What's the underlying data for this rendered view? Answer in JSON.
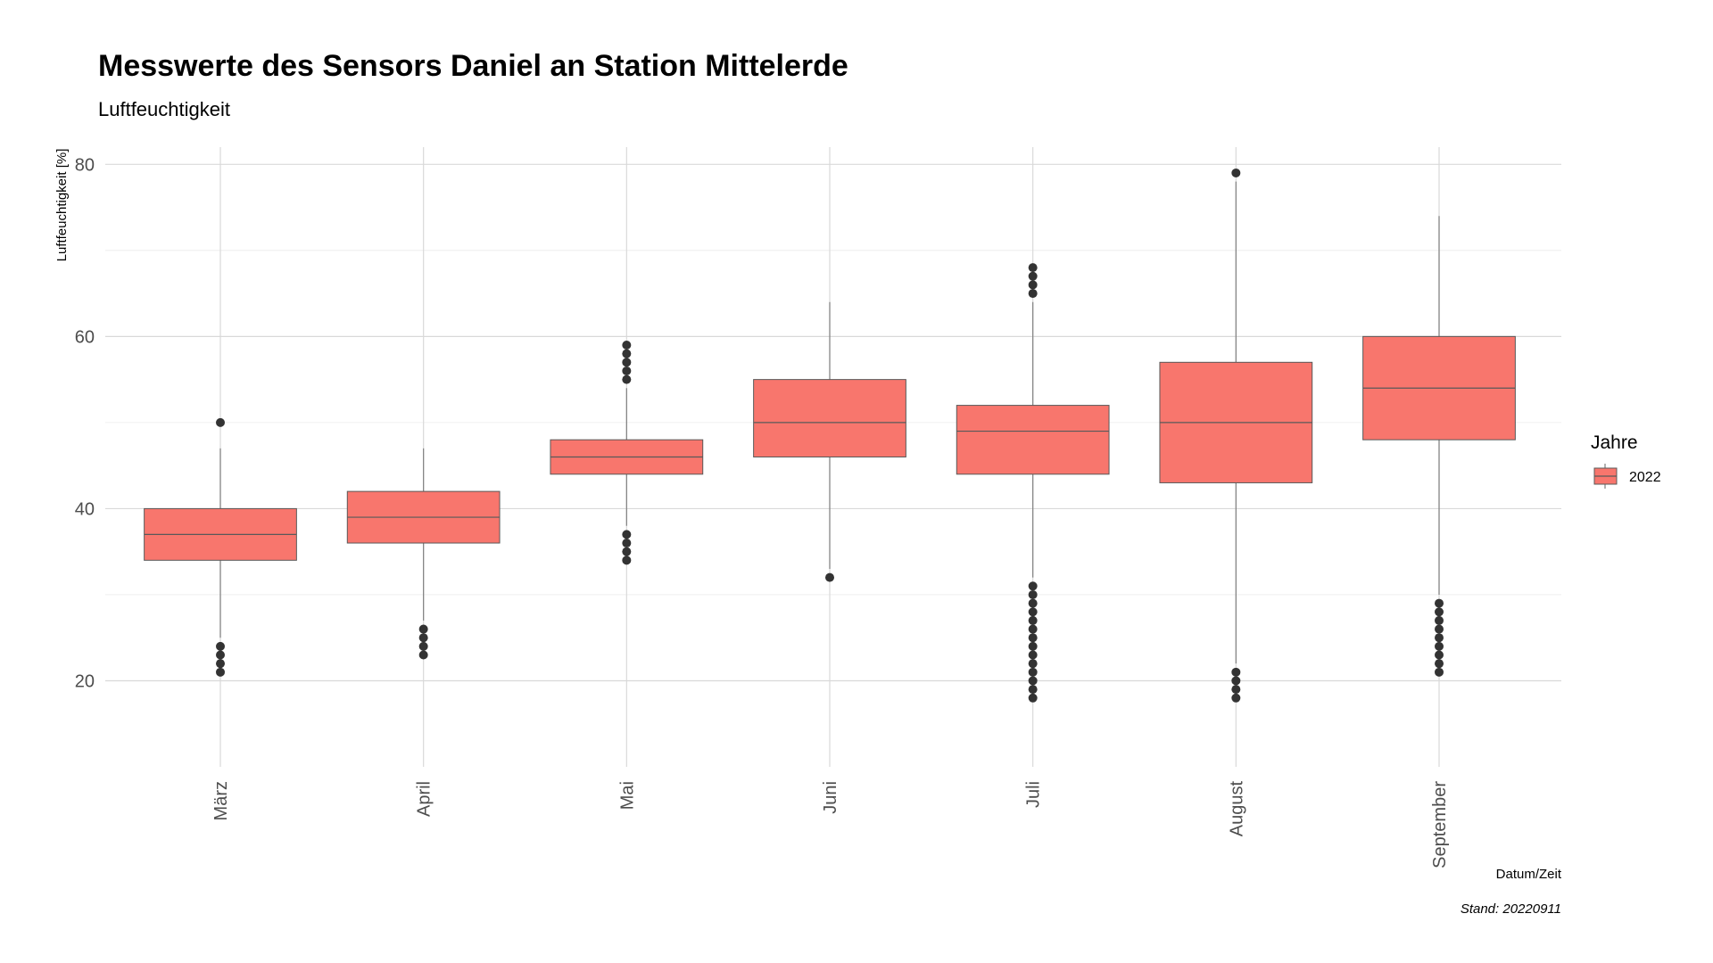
{
  "chart_data": {
    "type": "boxplot",
    "title": "Messwerte des Sensors Daniel an Station Mittelerde",
    "subtitle": "Luftfeuchtigkeit",
    "xlabel": "Datum/Zeit",
    "ylabel": "Luftfeuchtigkeit [%]",
    "caption": "Stand: 20220911",
    "ylim": [
      10,
      82
    ],
    "yticks": [
      20,
      40,
      60,
      80
    ],
    "grid": true,
    "legend": {
      "title": "Jahre",
      "position": "right",
      "entries": [
        {
          "label": "2022",
          "color": "#F8766D"
        }
      ]
    },
    "categories": [
      "März",
      "April",
      "Mai",
      "Juni",
      "Juli",
      "August",
      "September"
    ],
    "series": [
      {
        "name": "2022",
        "color": "#F8766D",
        "boxes": [
          {
            "category": "März",
            "whisker_low": 25,
            "q1": 34,
            "median": 37,
            "q3": 40,
            "whisker_high": 47,
            "outliers": [
              21,
              22,
              23,
              24,
              50
            ]
          },
          {
            "category": "April",
            "whisker_low": 27,
            "q1": 36,
            "median": 39,
            "q3": 42,
            "whisker_high": 47,
            "outliers": [
              23,
              24,
              25,
              26
            ]
          },
          {
            "category": "Mai",
            "whisker_low": 38,
            "q1": 44,
            "median": 46,
            "q3": 48,
            "whisker_high": 54,
            "outliers": [
              34,
              35,
              36,
              37,
              55,
              56,
              57,
              58,
              59
            ]
          },
          {
            "category": "Juni",
            "whisker_low": 33,
            "q1": 46,
            "median": 50,
            "q3": 55,
            "whisker_high": 64,
            "outliers": [
              32
            ]
          },
          {
            "category": "Juli",
            "whisker_low": 32,
            "q1": 44,
            "median": 49,
            "q3": 52,
            "whisker_high": 64,
            "outliers": [
              18,
              19,
              20,
              21,
              22,
              23,
              24,
              25,
              26,
              27,
              28,
              29,
              30,
              31,
              65,
              66,
              67,
              68
            ]
          },
          {
            "category": "August",
            "whisker_low": 22,
            "q1": 43,
            "median": 50,
            "q3": 57,
            "whisker_high": 78,
            "outliers": [
              18,
              19,
              20,
              21,
              79
            ]
          },
          {
            "category": "September",
            "whisker_low": 30,
            "q1": 48,
            "median": 54,
            "q3": 60,
            "whisker_high": 74,
            "outliers": [
              21,
              22,
              23,
              24,
              25,
              26,
              27,
              28,
              29
            ]
          }
        ]
      }
    ]
  }
}
